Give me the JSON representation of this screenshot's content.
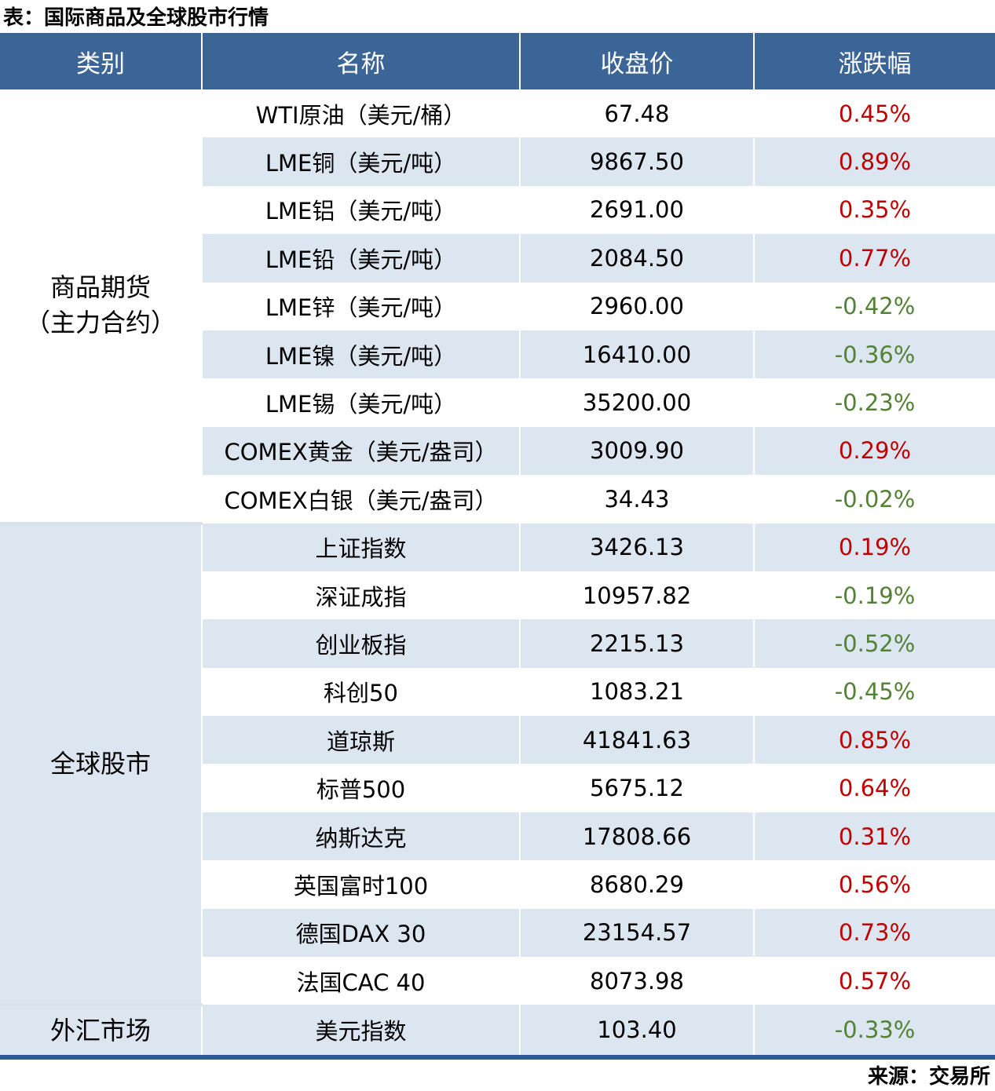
{
  "title": "表：国际商品及全球股市行情",
  "source": "来源：交易所",
  "header": {
    "category": "类别",
    "name": "名称",
    "close": "收盘价",
    "change": "涨跌幅"
  },
  "colors": {
    "header_bg": "#3A6596",
    "header_text": "#ffffff",
    "row_stripe": "#DCE6F1",
    "up_red": "#C00000",
    "down_green": "#548235",
    "bottom_border": "#2E5B8E",
    "section_divider": "#D9E1EB"
  },
  "groups": [
    {
      "category_lines": [
        "商品期货",
        "（主力合约）"
      ],
      "rows": [
        {
          "name": "WTI原油（美元/桶）",
          "close": "67.48",
          "change": "0.45%",
          "direction": "up"
        },
        {
          "name": "LME铜（美元/吨）",
          "close": "9867.50",
          "change": "0.89%",
          "direction": "up"
        },
        {
          "name": "LME铝（美元/吨）",
          "close": "2691.00",
          "change": "0.35%",
          "direction": "up"
        },
        {
          "name": "LME铅（美元/吨）",
          "close": "2084.50",
          "change": "0.77%",
          "direction": "up"
        },
        {
          "name": "LME锌（美元/吨）",
          "close": "2960.00",
          "change": "-0.42%",
          "direction": "down"
        },
        {
          "name": "LME镍（美元/吨）",
          "close": "16410.00",
          "change": "-0.36%",
          "direction": "down"
        },
        {
          "name": "LME锡（美元/吨）",
          "close": "35200.00",
          "change": "-0.23%",
          "direction": "down"
        },
        {
          "name": "COMEX黄金（美元/盎司）",
          "close": "3009.90",
          "change": "0.29%",
          "direction": "up"
        },
        {
          "name": "COMEX白银（美元/盎司）",
          "close": "34.43",
          "change": "-0.02%",
          "direction": "down"
        }
      ]
    },
    {
      "category_lines": [
        "全球股市"
      ],
      "rows": [
        {
          "name": "上证指数",
          "close": "3426.13",
          "change": "0.19%",
          "direction": "up"
        },
        {
          "name": "深证成指",
          "close": "10957.82",
          "change": "-0.19%",
          "direction": "down"
        },
        {
          "name": "创业板指",
          "close": "2215.13",
          "change": "-0.52%",
          "direction": "down"
        },
        {
          "name": "科创50",
          "close": "1083.21",
          "change": "-0.45%",
          "direction": "down"
        },
        {
          "name": "道琼斯",
          "close": "41841.63",
          "change": "0.85%",
          "direction": "up"
        },
        {
          "name": "标普500",
          "close": "5675.12",
          "change": "0.64%",
          "direction": "up"
        },
        {
          "name": "纳斯达克",
          "close": "17808.66",
          "change": "0.31%",
          "direction": "up"
        },
        {
          "name": "英国富时100",
          "close": "8680.29",
          "change": "0.56%",
          "direction": "up"
        },
        {
          "name": "德国DAX 30",
          "close": "23154.57",
          "change": "0.73%",
          "direction": "up"
        },
        {
          "name": "法国CAC 40",
          "close": "8073.98",
          "change": "0.57%",
          "direction": "up"
        }
      ]
    },
    {
      "category_lines": [
        "外汇市场"
      ],
      "rows": [
        {
          "name": "美元指数",
          "close": "103.40",
          "change": "-0.33%",
          "direction": "down"
        }
      ]
    }
  ],
  "chart_data": {
    "type": "table",
    "title": "表：国际商品及全球股市行情",
    "source_note": "来源：交易所",
    "columns": [
      "类别",
      "名称",
      "收盘价",
      "涨跌幅"
    ],
    "rows": [
      [
        "商品期货（主力合约）",
        "WTI原油（美元/桶）",
        67.48,
        "0.45%"
      ],
      [
        "商品期货（主力合约）",
        "LME铜（美元/吨）",
        9867.5,
        "0.89%"
      ],
      [
        "商品期货（主力合约）",
        "LME铝（美元/吨）",
        2691.0,
        "0.35%"
      ],
      [
        "商品期货（主力合约）",
        "LME铅（美元/吨）",
        2084.5,
        "0.77%"
      ],
      [
        "商品期货（主力合约）",
        "LME锌（美元/吨）",
        2960.0,
        "-0.42%"
      ],
      [
        "商品期货（主力合约）",
        "LME镍（美元/吨）",
        16410.0,
        "-0.36%"
      ],
      [
        "商品期货（主力合约）",
        "LME锡（美元/吨）",
        35200.0,
        "-0.23%"
      ],
      [
        "商品期货（主力合约）",
        "COMEX黄金（美元/盎司）",
        3009.9,
        "0.29%"
      ],
      [
        "商品期货（主力合约）",
        "COMEX白银（美元/盎司）",
        34.43,
        "-0.02%"
      ],
      [
        "全球股市",
        "上证指数",
        3426.13,
        "0.19%"
      ],
      [
        "全球股市",
        "深证成指",
        10957.82,
        "-0.19%"
      ],
      [
        "全球股市",
        "创业板指",
        2215.13,
        "-0.52%"
      ],
      [
        "全球股市",
        "科创50",
        1083.21,
        "-0.45%"
      ],
      [
        "全球股市",
        "道琼斯",
        41841.63,
        "0.85%"
      ],
      [
        "全球股市",
        "标普500",
        5675.12,
        "0.64%"
      ],
      [
        "全球股市",
        "纳斯达克",
        17808.66,
        "0.31%"
      ],
      [
        "全球股市",
        "英国富时100",
        8680.29,
        "0.56%"
      ],
      [
        "全球股市",
        "德国DAX 30",
        23154.57,
        "0.73%"
      ],
      [
        "全球股市",
        "法国CAC 40",
        8073.98,
        "0.57%"
      ],
      [
        "外汇市场",
        "美元指数",
        103.4,
        "-0.33%"
      ]
    ]
  }
}
